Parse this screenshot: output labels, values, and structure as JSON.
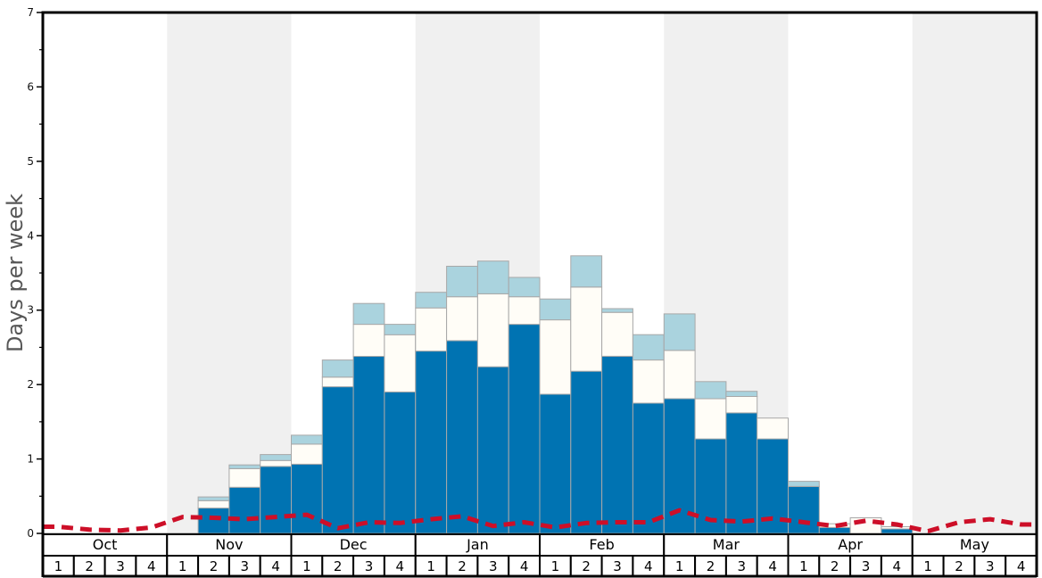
{
  "chart": {
    "colors": {
      "dark_blue": "#0073b2",
      "white_bar": "#fffdf7",
      "light_blue": "#aad3de",
      "bar_border": "#a8a8a8",
      "red_line": "#cd0f28",
      "band": "#f0f0f0",
      "axis": "#000000",
      "baseline": "#888888",
      "ylabel_color": "#575757"
    }
  },
  "chart_data": {
    "type": "bar",
    "subtype": "stacked-bars-with-dashed-line",
    "title": "",
    "xlabel": "",
    "ylabel": "Days per week",
    "ylim": [
      0,
      7
    ],
    "yticks": [
      "0",
      "1",
      "2",
      "3",
      "4",
      "5",
      "6",
      "7"
    ],
    "minor_ticks_every": 0.5,
    "grid": false,
    "legend": "none",
    "months": [
      "Oct",
      "Nov",
      "Dec",
      "Jan",
      "Feb",
      "Mar",
      "Apr",
      "May"
    ],
    "shaded_months": [
      "Nov",
      "Jan",
      "Mar",
      "May"
    ],
    "week_labels": [
      "1",
      "2",
      "3",
      "4"
    ],
    "weeks_per_month": 4,
    "series": [
      {
        "name": "dark-blue",
        "color": "#0073b2",
        "values": [
          0,
          0,
          0,
          0,
          0,
          0.34,
          0.62,
          0.9,
          0.93,
          1.97,
          2.38,
          1.9,
          2.45,
          2.59,
          2.24,
          2.81,
          1.87,
          2.18,
          2.38,
          1.75,
          1.81,
          1.27,
          1.62,
          1.27,
          0.63,
          0.08,
          0,
          0.06,
          0,
          0,
          0,
          0
        ]
      },
      {
        "name": "white",
        "color": "#fffdf7",
        "values": [
          0,
          0,
          0,
          0,
          0,
          0.1,
          0.25,
          0.08,
          0.27,
          0.13,
          0.43,
          0.77,
          0.58,
          0.59,
          0.98,
          0.37,
          1.0,
          1.13,
          0.59,
          0.58,
          0.65,
          0.54,
          0.22,
          0.28,
          0,
          0.05,
          0.21,
          0.03,
          0,
          0,
          0,
          0
        ]
      },
      {
        "name": "light-blue",
        "color": "#aad3de",
        "values": [
          0,
          0,
          0,
          0,
          0,
          0.05,
          0.05,
          0.08,
          0.12,
          0.23,
          0.28,
          0.14,
          0.21,
          0.41,
          0.44,
          0.26,
          0.28,
          0.42,
          0.05,
          0.34,
          0.49,
          0.23,
          0.07,
          0,
          0.07,
          0,
          0,
          0,
          0,
          0,
          0,
          0
        ]
      }
    ],
    "line_series": {
      "name": "red-dashed-line",
      "color": "#cd0f28",
      "style": "dashed",
      "values": [
        0.09,
        0.05,
        0.04,
        0.08,
        0.22,
        0.21,
        0.19,
        0.22,
        0.25,
        0.07,
        0.15,
        0.14,
        0.19,
        0.23,
        0.1,
        0.15,
        0.08,
        0.14,
        0.15,
        0.15,
        0.31,
        0.18,
        0.16,
        0.2,
        0.15,
        0.1,
        0.17,
        0.12,
        0.03,
        0.15,
        0.19,
        0.12
      ]
    }
  }
}
